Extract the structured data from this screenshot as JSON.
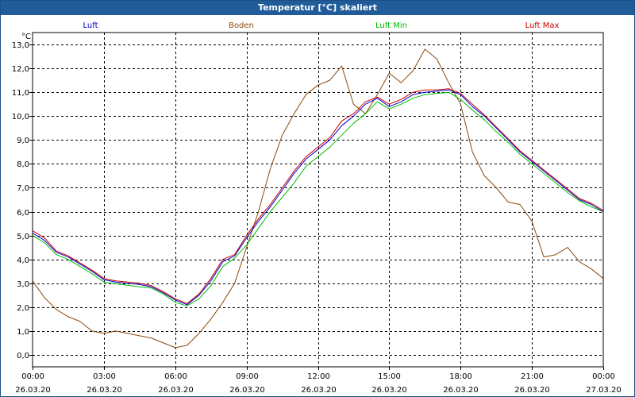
{
  "window": {
    "title": "Temperatur [°C] skaliert"
  },
  "colors": {
    "luft": "#0000cc",
    "boden": "#8b4a0c",
    "luft_min": "#00bb00",
    "luft_max": "#cc0000",
    "titlebar": "#1f5c99",
    "grid": "#000000"
  },
  "chart_data": {
    "type": "line",
    "title": "Temperatur [°C] skaliert",
    "ylabel": "°C",
    "xlabel": "",
    "ylim": [
      -0.5,
      13.5
    ],
    "yticks": [
      0,
      1,
      2,
      3,
      4,
      5,
      6,
      7,
      8,
      9,
      10,
      11,
      12,
      13
    ],
    "ytick_labels": [
      "0,0",
      "1,0",
      "2,0",
      "3,0",
      "4,0",
      "5,0",
      "6,0",
      "7,0",
      "8,0",
      "9,0",
      "10,0",
      "11,0",
      "12,0",
      "13,0"
    ],
    "xlim": [
      0,
      24
    ],
    "xticks": [
      {
        "hour": 0,
        "time": "00:00",
        "date": "26.03.20"
      },
      {
        "hour": 3,
        "time": "03:00",
        "date": "26.03.20"
      },
      {
        "hour": 6,
        "time": "06:00",
        "date": "26.03.20"
      },
      {
        "hour": 9,
        "time": "09:00",
        "date": "26.03.20"
      },
      {
        "hour": 12,
        "time": "12:00",
        "date": "26.03.20"
      },
      {
        "hour": 15,
        "time": "15:00",
        "date": "26.03.20"
      },
      {
        "hour": 18,
        "time": "18:00",
        "date": "26.03.20"
      },
      {
        "hour": 21,
        "time": "21:00",
        "date": "26.03.20"
      },
      {
        "hour": 24,
        "time": "00:00",
        "date": "27.03.20"
      }
    ],
    "grid": true,
    "legend_position": "top",
    "series": [
      {
        "name": "Luft",
        "color": "#0000cc",
        "x": [
          0,
          0.5,
          1,
          1.5,
          2,
          2.5,
          3,
          3.5,
          4,
          4.5,
          5,
          5.5,
          6,
          6.5,
          7,
          7.5,
          8,
          8.5,
          9,
          9.5,
          10,
          10.5,
          11,
          11.5,
          12,
          12.5,
          13,
          13.5,
          14,
          14.5,
          15,
          15.5,
          16,
          16.5,
          17,
          17.5,
          18,
          18.5,
          19,
          19.5,
          20,
          20.5,
          21,
          21.5,
          22,
          22.5,
          23,
          23.5,
          24
        ],
        "y": [
          5.1,
          4.8,
          4.3,
          4.1,
          3.8,
          3.5,
          3.15,
          3.05,
          3.0,
          2.95,
          2.85,
          2.6,
          2.3,
          2.1,
          2.5,
          3.1,
          3.9,
          4.15,
          4.9,
          5.6,
          6.2,
          6.9,
          7.6,
          8.2,
          8.6,
          9.0,
          9.6,
          10.0,
          10.5,
          10.75,
          10.4,
          10.6,
          10.9,
          11.0,
          11.05,
          11.1,
          10.9,
          10.4,
          10.0,
          9.5,
          9.0,
          8.5,
          8.1,
          7.7,
          7.3,
          6.9,
          6.5,
          6.3,
          6.0
        ]
      },
      {
        "name": "Boden",
        "color": "#8b4a0c",
        "x": [
          0,
          0.5,
          1,
          1.5,
          2,
          2.5,
          3,
          3.5,
          4,
          4.5,
          5,
          5.5,
          6,
          6.5,
          7,
          7.5,
          8,
          8.5,
          9,
          9.5,
          10,
          10.5,
          11,
          11.5,
          12,
          12.5,
          13,
          13.5,
          14,
          14.5,
          15,
          15.5,
          16,
          16.5,
          17,
          17.5,
          18,
          18.5,
          19,
          19.5,
          20,
          20.5,
          21,
          21.5,
          22,
          22.5,
          23,
          23.5,
          24
        ],
        "y": [
          3.1,
          2.4,
          1.9,
          1.6,
          1.4,
          1.0,
          0.9,
          1.0,
          0.9,
          0.8,
          0.7,
          0.5,
          0.3,
          0.4,
          0.9,
          1.5,
          2.2,
          3.0,
          4.5,
          6.0,
          7.8,
          9.2,
          10.1,
          10.9,
          11.3,
          11.5,
          12.1,
          10.5,
          10.1,
          10.9,
          11.8,
          11.4,
          11.9,
          12.8,
          12.4,
          11.4,
          10.5,
          8.5,
          7.5,
          7.0,
          6.4,
          6.3,
          5.6,
          4.1,
          4.2,
          4.5,
          3.9,
          3.6,
          3.2
        ]
      },
      {
        "name": "Luft Min",
        "color": "#00bb00",
        "x": [
          0,
          0.5,
          1,
          1.5,
          2,
          2.5,
          3,
          3.5,
          4,
          4.5,
          5,
          5.5,
          6,
          6.5,
          7,
          7.5,
          8,
          8.5,
          9,
          9.5,
          10,
          10.5,
          11,
          11.5,
          12,
          12.5,
          13,
          13.5,
          14,
          14.5,
          15,
          15.5,
          16,
          16.5,
          17,
          17.5,
          18,
          18.5,
          19,
          19.5,
          20,
          20.5,
          21,
          21.5,
          22,
          22.5,
          23,
          23.5,
          24
        ],
        "y": [
          5.0,
          4.7,
          4.2,
          4.0,
          3.7,
          3.4,
          3.05,
          2.98,
          2.92,
          2.85,
          2.8,
          2.55,
          2.2,
          2.05,
          2.35,
          2.9,
          3.7,
          4.05,
          4.6,
          5.3,
          6.0,
          6.6,
          7.2,
          7.9,
          8.3,
          8.7,
          9.2,
          9.7,
          10.1,
          10.6,
          10.3,
          10.5,
          10.75,
          10.9,
          10.95,
          11.0,
          10.7,
          10.25,
          9.85,
          9.35,
          8.9,
          8.4,
          8.0,
          7.6,
          7.2,
          6.8,
          6.45,
          6.2,
          6.0
        ]
      },
      {
        "name": "Luft Max",
        "color": "#cc0000",
        "x": [
          0,
          0.5,
          1,
          1.5,
          2,
          2.5,
          3,
          3.5,
          4,
          4.5,
          5,
          5.5,
          6,
          6.5,
          7,
          7.5,
          8,
          8.5,
          9,
          9.5,
          10,
          10.5,
          11,
          11.5,
          12,
          12.5,
          13,
          13.5,
          14,
          14.5,
          15,
          15.5,
          16,
          16.5,
          17,
          17.5,
          18,
          18.5,
          19,
          19.5,
          20,
          20.5,
          21,
          21.5,
          22,
          22.5,
          23,
          23.5,
          24
        ],
        "y": [
          5.2,
          4.9,
          4.35,
          4.15,
          3.85,
          3.55,
          3.2,
          3.1,
          3.05,
          3.0,
          2.9,
          2.65,
          2.35,
          2.15,
          2.55,
          3.2,
          4.0,
          4.2,
          5.0,
          5.7,
          6.3,
          7.0,
          7.7,
          8.3,
          8.7,
          9.1,
          9.8,
          10.1,
          10.6,
          10.8,
          10.5,
          10.7,
          11.0,
          11.1,
          11.1,
          11.15,
          10.95,
          10.5,
          10.05,
          9.55,
          9.05,
          8.55,
          8.15,
          7.75,
          7.35,
          6.95,
          6.55,
          6.35,
          6.05
        ]
      }
    ]
  }
}
